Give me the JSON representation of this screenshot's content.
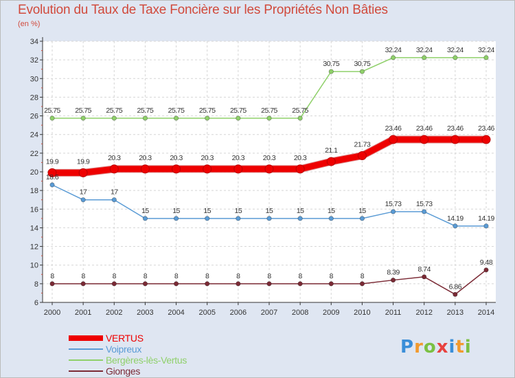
{
  "title": "Evolution du Taux de Taxe Foncière sur les Propriétés Non Bâties",
  "subtitle": "(en %)",
  "logo": {
    "letters": [
      "P",
      "r",
      "o",
      "x",
      "i",
      "t",
      "i"
    ],
    "colors": [
      "#3a8ed8",
      "#f29a2e",
      "#7bc043",
      "#e8423f",
      "#3a8ed8",
      "#f29a2e",
      "#7bc043"
    ]
  },
  "chart_data": {
    "type": "line",
    "x": [
      "2000",
      "2001",
      "2002",
      "2003",
      "2004",
      "2005",
      "2006",
      "2007",
      "2008",
      "2009",
      "2010",
      "2011",
      "2012",
      "2013",
      "2014"
    ],
    "ylim": [
      6,
      34
    ],
    "yticks": [
      6,
      8,
      10,
      12,
      14,
      16,
      18,
      20,
      22,
      24,
      26,
      28,
      30,
      32,
      34
    ],
    "grid": true,
    "legend_position": "bottom-left",
    "series": [
      {
        "name": "Voipreux",
        "color": "#5a9bd5",
        "values": [
          18.6,
          17,
          17,
          15,
          15,
          15,
          15,
          15,
          15,
          15,
          15,
          15.73,
          15.73,
          14.19,
          14.19
        ],
        "labels": [
          "18.6",
          "17",
          "17",
          "15",
          "15",
          "15",
          "15",
          "15",
          "15",
          "15",
          "15",
          "15.73",
          "15.73",
          "14.19",
          "14.19"
        ]
      },
      {
        "name": "Bergères-lès-Vertus",
        "color": "#8fd06a",
        "values": [
          25.75,
          25.75,
          25.75,
          25.75,
          25.75,
          25.75,
          25.75,
          25.75,
          25.75,
          30.75,
          30.75,
          32.24,
          32.24,
          32.24,
          32.24
        ],
        "labels": [
          "25.75",
          "25.75",
          "25.75",
          "25.75",
          "25.75",
          "25.75",
          "25.75",
          "25.75",
          "25.75",
          "30.75",
          "30.75",
          "32.24",
          "32.24",
          "32.24",
          "32.24"
        ]
      },
      {
        "name": "Gionges",
        "color": "#7b2a35",
        "values": [
          8,
          8,
          8,
          8,
          8,
          8,
          8,
          8,
          8,
          8,
          8,
          8.39,
          8.74,
          6.86,
          9.48
        ],
        "labels": [
          "8",
          "8",
          "8",
          "8",
          "8",
          "8",
          "8",
          "8",
          "8",
          "8",
          "8",
          "8.39",
          "8.74",
          "6.86",
          "9.48"
        ]
      },
      {
        "name": "VERTUS",
        "color": "#ee0000",
        "highlight": true,
        "values": [
          19.9,
          19.9,
          20.3,
          20.3,
          20.3,
          20.3,
          20.3,
          20.3,
          20.3,
          21.1,
          21.73,
          23.46,
          23.46,
          23.46,
          23.46
        ],
        "labels": [
          "19.9",
          "19.9",
          "20.3",
          "20.3",
          "20.3",
          "20.3",
          "20.3",
          "20.3",
          "20.3",
          "21.1",
          "21.73",
          "23.46",
          "23.46",
          "23.46",
          "23.46"
        ]
      }
    ],
    "legend_order": [
      "VERTUS",
      "Voipreux",
      "Bergères-lès-Vertus",
      "Gionges"
    ]
  }
}
